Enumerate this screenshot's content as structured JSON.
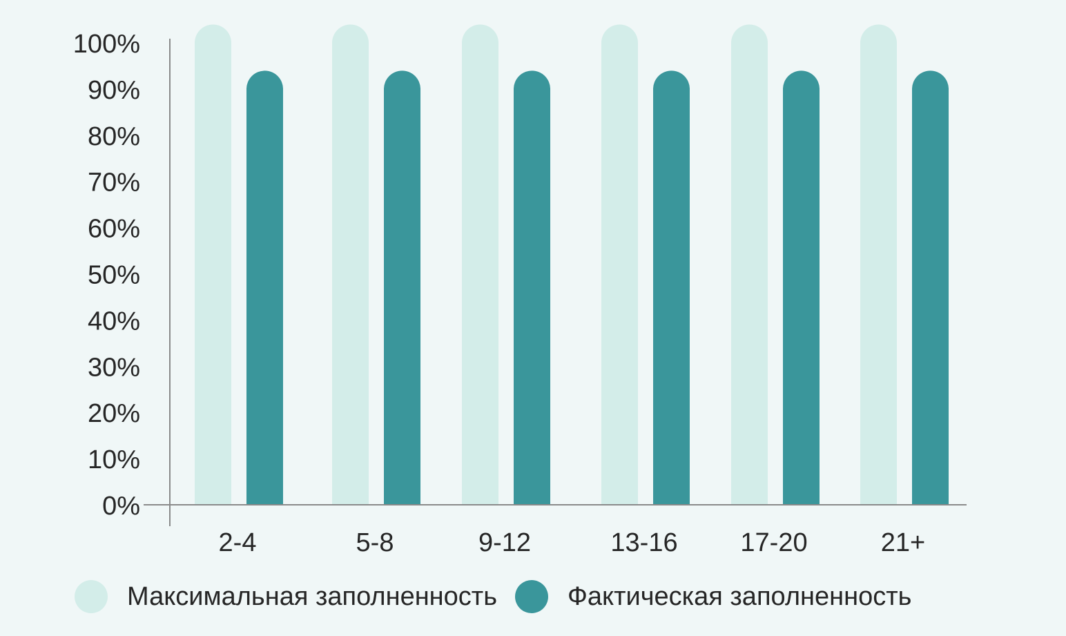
{
  "chart_data": {
    "type": "bar",
    "categories": [
      "2-4",
      "5-8",
      "9-12",
      "13-16",
      "17-20",
      "21+"
    ],
    "series": [
      {
        "name": "Максимальная заполненность",
        "values": [
          100,
          100,
          100,
          100,
          100,
          100
        ],
        "color": "#d3ede9"
      },
      {
        "name": "Фактическая заполненность",
        "values": [
          90,
          90,
          90,
          90,
          90,
          90
        ],
        "color": "#3a969b"
      }
    ],
    "yticks": [
      "0%",
      "10%",
      "20%",
      "30%",
      "40%",
      "50%",
      "60%",
      "70%",
      "80%",
      "90%",
      "100%"
    ],
    "ylim": [
      0,
      100
    ],
    "title": "",
    "xlabel": "",
    "ylabel": "",
    "grid": false,
    "legend_position": "bottom",
    "bar_style": "rounded-top"
  },
  "colors": {
    "background": "#f0f7f7",
    "axis": "#8a8a8a",
    "text": "#262626"
  }
}
